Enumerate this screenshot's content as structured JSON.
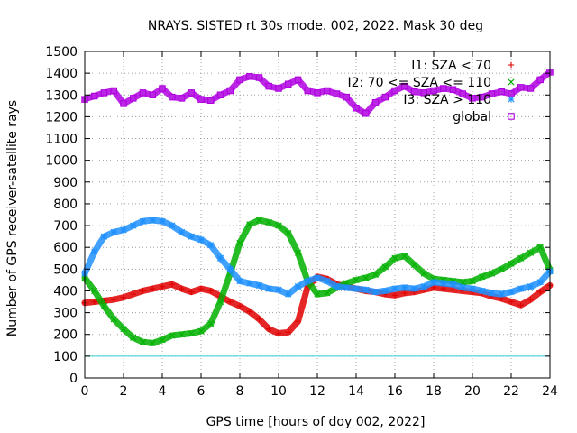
{
  "chart_data": {
    "type": "scatter",
    "title": "NRAYS. SISTED rt 30s mode. 002, 2022. Mask 30 deg",
    "xlabel": "GPS time [hours of doy 002, 2022]",
    "ylabel": "Number of GPS receiver-satellite rays",
    "xlim": [
      0,
      24
    ],
    "ylim": [
      0,
      1500
    ],
    "xticks": [
      0,
      2,
      4,
      6,
      8,
      10,
      12,
      14,
      16,
      18,
      20,
      22,
      24
    ],
    "yticks": [
      0,
      100,
      200,
      300,
      400,
      500,
      600,
      700,
      800,
      900,
      1000,
      1100,
      1200,
      1300,
      1400,
      1500
    ],
    "grid": true,
    "legend_position": "top-right",
    "reference_line": {
      "y": 100,
      "color": "#33cccc"
    },
    "series": [
      {
        "name": "I1: SZA < 70",
        "color": "#e00000",
        "marker": "+",
        "x": [
          0,
          0.5,
          1,
          1.5,
          2,
          2.5,
          3,
          3.5,
          4,
          4.5,
          5,
          5.5,
          6,
          6.5,
          7,
          7.5,
          8,
          8.5,
          9,
          9.5,
          10,
          10.5,
          11,
          11.5,
          12,
          12.5,
          13,
          13.5,
          14,
          14.5,
          15,
          15.5,
          16,
          16.5,
          17,
          17.5,
          18,
          18.5,
          19,
          19.5,
          20,
          20.5,
          21,
          21.5,
          22,
          22.5,
          23,
          23.5,
          24
        ],
        "y": [
          345,
          350,
          355,
          360,
          370,
          385,
          400,
          410,
          420,
          430,
          410,
          395,
          410,
          400,
          375,
          350,
          330,
          305,
          270,
          225,
          205,
          210,
          260,
          420,
          465,
          455,
          430,
          420,
          410,
          400,
          395,
          385,
          380,
          390,
          395,
          405,
          415,
          410,
          405,
          400,
          395,
          390,
          375,
          365,
          350,
          335,
          360,
          395,
          425
        ]
      },
      {
        "name": "I2: 70 <= SZA <= 110",
        "color": "#00b000",
        "marker": "x",
        "x": [
          0,
          0.5,
          1,
          1.5,
          2,
          2.5,
          3,
          3.5,
          4,
          4.5,
          5,
          5.5,
          6,
          6.5,
          7,
          7.5,
          8,
          8.5,
          9,
          9.5,
          10,
          10.5,
          11,
          11.5,
          12,
          12.5,
          13,
          13.5,
          14,
          14.5,
          15,
          15.5,
          16,
          16.5,
          17,
          17.5,
          18,
          18.5,
          19,
          19.5,
          20,
          20.5,
          21,
          21.5,
          22,
          22.5,
          23,
          23.5,
          24
        ],
        "y": [
          460,
          400,
          330,
          270,
          225,
          185,
          165,
          160,
          175,
          195,
          200,
          205,
          215,
          250,
          350,
          480,
          620,
          705,
          725,
          715,
          700,
          665,
          575,
          445,
          385,
          390,
          415,
          435,
          450,
          460,
          475,
          510,
          550,
          560,
          520,
          480,
          455,
          450,
          445,
          440,
          445,
          465,
          480,
          500,
          525,
          550,
          575,
          600,
          495
        ]
      },
      {
        "name": "I3: SZA > 110",
        "color": "#1e90ff",
        "marker": "*",
        "x": [
          0,
          0.5,
          1,
          1.5,
          2,
          2.5,
          3,
          3.5,
          4,
          4.5,
          5,
          5.5,
          6,
          6.5,
          7,
          7.5,
          8,
          8.5,
          9,
          9.5,
          10,
          10.5,
          11,
          11.5,
          12,
          12.5,
          13,
          13.5,
          14,
          14.5,
          15,
          15.5,
          16,
          16.5,
          17,
          17.5,
          18,
          18.5,
          19,
          19.5,
          20,
          20.5,
          21,
          21.5,
          22,
          22.5,
          23,
          23.5,
          24
        ],
        "y": [
          480,
          580,
          650,
          670,
          680,
          700,
          720,
          725,
          720,
          700,
          670,
          650,
          635,
          610,
          550,
          500,
          445,
          435,
          425,
          410,
          405,
          385,
          420,
          445,
          460,
          445,
          420,
          415,
          410,
          405,
          395,
          400,
          410,
          415,
          410,
          420,
          440,
          435,
          430,
          415,
          410,
          400,
          390,
          385,
          395,
          410,
          420,
          440,
          490
        ]
      },
      {
        "name": "global",
        "color": "#b000e0",
        "marker": "square",
        "x": [
          0,
          0.5,
          1,
          1.5,
          2,
          2.5,
          3,
          3.5,
          4,
          4.5,
          5,
          5.5,
          6,
          6.5,
          7,
          7.5,
          8,
          8.5,
          9,
          9.5,
          10,
          10.5,
          11,
          11.5,
          12,
          12.5,
          13,
          13.5,
          14,
          14.5,
          15,
          15.5,
          16,
          16.5,
          17,
          17.5,
          18,
          18.5,
          19,
          19.5,
          20,
          20.5,
          21,
          21.5,
          22,
          22.5,
          23,
          23.5,
          24
        ],
        "y": [
          1280,
          1295,
          1310,
          1320,
          1260,
          1285,
          1310,
          1300,
          1330,
          1290,
          1285,
          1310,
          1280,
          1275,
          1300,
          1320,
          1370,
          1385,
          1380,
          1340,
          1330,
          1350,
          1370,
          1320,
          1310,
          1320,
          1305,
          1290,
          1240,
          1215,
          1265,
          1290,
          1320,
          1340,
          1315,
          1310,
          1320,
          1330,
          1325,
          1305,
          1285,
          1290,
          1305,
          1315,
          1305,
          1335,
          1330,
          1370,
          1405
        ]
      }
    ]
  }
}
